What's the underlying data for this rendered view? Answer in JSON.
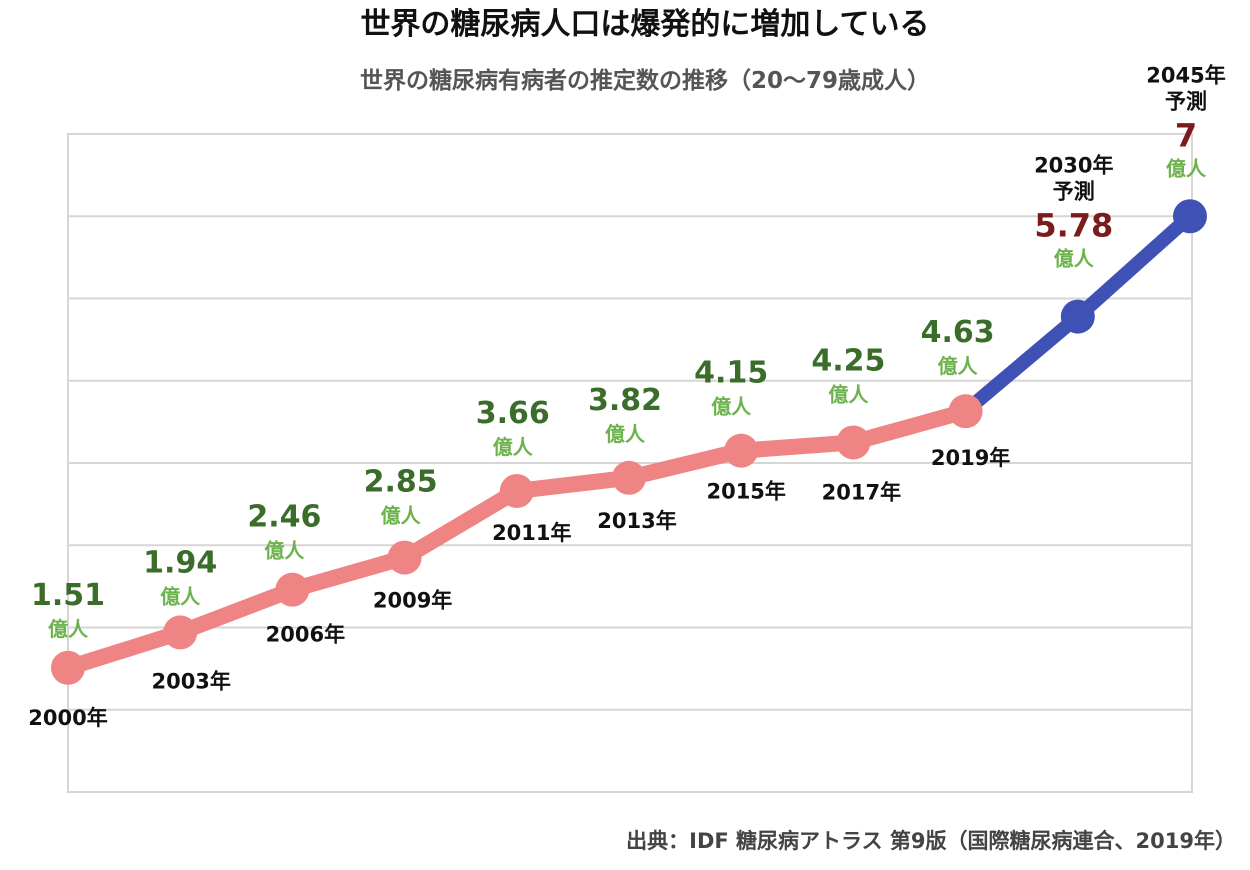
{
  "chart_data": {
    "type": "line",
    "title": "世界の糖尿病人口は爆発的に増加している",
    "subtitle": "世界の糖尿病有病者の推定数の推移（20〜79歳成人）",
    "source": "出典：IDF 糖尿病アトラス 第9版（国際糖尿病連合、2019年）",
    "unit_label": "億人",
    "forecast_label": "予測",
    "ylim": [
      0,
      8
    ],
    "grid": true,
    "categories": [
      "2000年",
      "2003年",
      "2006年",
      "2009年",
      "2011年",
      "2013年",
      "2015年",
      "2017年",
      "2019年",
      "2030年",
      "2045年"
    ],
    "values": [
      1.51,
      1.94,
      2.46,
      2.85,
      3.66,
      3.82,
      4.15,
      4.25,
      4.63,
      5.78,
      7
    ],
    "value_labels": [
      "1.51",
      "1.94",
      "2.46",
      "2.85",
      "3.66",
      "3.82",
      "4.15",
      "4.25",
      "4.63",
      "5.78",
      "7"
    ],
    "forecast_from_index": 8,
    "colors": {
      "actual": "#ee8484",
      "forecast": "#3f51b5",
      "value_text": "#3b6d2a",
      "unit_text": "#6db34d",
      "forecast_value_text": "#7a1c1c",
      "grid": "#d6d6d6"
    }
  }
}
